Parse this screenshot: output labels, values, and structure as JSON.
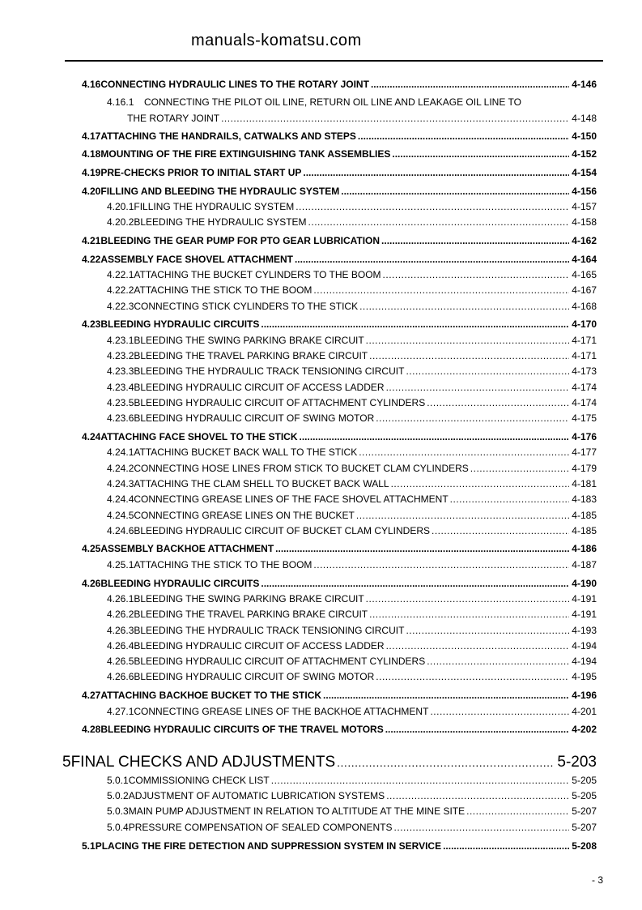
{
  "toc": [
    {
      "level": "main",
      "num": "4.16",
      "title": "CONNECTING HYDRAULIC LINES TO THE ROTARY JOINT",
      "page": "4-146"
    },
    {
      "level": "sub",
      "num": "4.16.1",
      "title": "CONNECTING THE PILOT OIL LINE, RETURN OIL LINE AND LEAKAGE OIL LINE TO",
      "page": ""
    },
    {
      "level": "sub",
      "num": "",
      "title": "THE ROTARY JOINT",
      "page": "4-148"
    },
    {
      "level": "main",
      "num": "4.17",
      "title": "ATTACHING THE HANDRAILS, CATWALKS AND STEPS",
      "page": "4-150"
    },
    {
      "level": "main",
      "num": "4.18",
      "title": "MOUNTING OF THE FIRE EXTINGUISHING TANK ASSEMBLIES",
      "page": "4-152"
    },
    {
      "level": "main",
      "num": "4.19",
      "title": "PRE-CHECKS PRIOR TO INITIAL START UP",
      "page": "4-154"
    },
    {
      "level": "main",
      "num": "4.20",
      "title": "FILLING AND BLEEDING THE HYDRAULIC SYSTEM",
      "page": "4-156"
    },
    {
      "level": "sub",
      "num": "4.20.1",
      "title": "FILLING THE HYDRAULIC SYSTEM",
      "page": "4-157"
    },
    {
      "level": "sub",
      "num": "4.20.2",
      "title": "BLEEDING THE HYDRAULIC SYSTEM",
      "page": "4-158"
    },
    {
      "level": "main",
      "num": "4.21",
      "title": "BLEEDING THE GEAR PUMP FOR PTO GEAR LUBRICATION",
      "page": "4-162"
    },
    {
      "level": "main",
      "num": "4.22",
      "title": "ASSEMBLY FACE SHOVEL ATTACHMENT",
      "page": "4-164"
    },
    {
      "level": "sub",
      "num": "4.22.1",
      "title": "ATTACHING THE BUCKET CYLINDERS TO THE BOOM",
      "page": "4-165"
    },
    {
      "level": "sub",
      "num": "4.22.2",
      "title": "ATTACHING THE STICK TO THE BOOM",
      "page": "4-167"
    },
    {
      "level": "sub",
      "num": "4.22.3",
      "title": "CONNECTING STICK CYLINDERS TO THE STICK",
      "page": "4-168"
    },
    {
      "level": "main",
      "num": "4.23",
      "title": "BLEEDING HYDRAULIC CIRCUITS",
      "page": "4-170"
    },
    {
      "level": "sub",
      "num": "4.23.1",
      "title": "BLEEDING THE SWING PARKING BRAKE CIRCUIT",
      "page": "4-171"
    },
    {
      "level": "sub",
      "num": "4.23.2",
      "title": "BLEEDING THE TRAVEL PARKING BRAKE CIRCUIT",
      "page": "4-171"
    },
    {
      "level": "sub",
      "num": "4.23.3",
      "title": "BLEEDING THE HYDRAULIC TRACK TENSIONING CIRCUIT",
      "page": "4-173"
    },
    {
      "level": "sub",
      "num": "4.23.4",
      "title": "BLEEDING HYDRAULIC CIRCUIT OF ACCESS LADDER",
      "page": "4-174"
    },
    {
      "level": "sub",
      "num": "4.23.5",
      "title": "BLEEDING HYDRAULIC CIRCUIT OF ATTACHMENT CYLINDERS",
      "page": "4-174"
    },
    {
      "level": "sub",
      "num": "4.23.6",
      "title": "BLEEDING HYDRAULIC CIRCUIT OF SWING MOTOR",
      "page": "4-175"
    },
    {
      "level": "main",
      "num": "4.24",
      "title": "ATTACHING FACE SHOVEL TO THE STICK",
      "page": "4-176"
    },
    {
      "level": "sub",
      "num": "4.24.1",
      "title": "ATTACHING BUCKET BACK WALL TO THE STICK",
      "page": "4-177"
    },
    {
      "level": "sub",
      "num": "4.24.2",
      "title": "CONNECTING HOSE LINES FROM STICK TO BUCKET CLAM CYLINDERS",
      "page": "4-179"
    },
    {
      "level": "sub",
      "num": "4.24.3",
      "title": "ATTACHING THE CLAM SHELL TO BUCKET BACK WALL",
      "page": "4-181"
    },
    {
      "level": "sub",
      "num": "4.24.4",
      "title": "CONNECTING GREASE LINES OF THE FACE SHOVEL ATTACHMENT",
      "page": "4-183"
    },
    {
      "level": "sub",
      "num": "4.24.5",
      "title": "CONNECTING GREASE LINES ON THE BUCKET",
      "page": "4-185"
    },
    {
      "level": "sub",
      "num": "4.24.6",
      "title": "BLEEDING HYDRAULIC CIRCUIT OF BUCKET CLAM CYLINDERS",
      "page": "4-185"
    },
    {
      "level": "main",
      "num": "4.25",
      "title": "ASSEMBLY BACKHOE ATTACHMENT",
      "page": "4-186"
    },
    {
      "level": "sub",
      "num": "4.25.1",
      "title": "ATTACHING THE STICK TO THE BOOM",
      "page": "4-187"
    },
    {
      "level": "main",
      "num": "4.26",
      "title": "BLEEDING HYDRAULIC CIRCUITS",
      "page": "4-190"
    },
    {
      "level": "sub",
      "num": "4.26.1",
      "title": "BLEEDING THE SWING PARKING BRAKE CIRCUIT",
      "page": "4-191"
    },
    {
      "level": "sub",
      "num": "4.26.2",
      "title": "BLEEDING THE TRAVEL PARKING BRAKE CIRCUIT",
      "page": "4-191"
    },
    {
      "level": "sub",
      "num": "4.26.3",
      "title": "BLEEDING THE HYDRAULIC TRACK TENSIONING CIRCUIT",
      "page": "4-193"
    },
    {
      "level": "sub",
      "num": "4.26.4",
      "title": "BLEEDING HYDRAULIC CIRCUIT OF ACCESS LADDER",
      "page": "4-194"
    },
    {
      "level": "sub",
      "num": "4.26.5",
      "title": "BLEEDING HYDRAULIC CIRCUIT OF ATTACHMENT CYLINDERS",
      "page": "4-194"
    },
    {
      "level": "sub",
      "num": "4.26.6",
      "title": "BLEEDING HYDRAULIC CIRCUIT OF SWING MOTOR",
      "page": "4-195"
    },
    {
      "level": "main",
      "num": "4.27",
      "title": "ATTACHING BACKHOE BUCKET TO THE STICK",
      "page": "4-196"
    },
    {
      "level": "sub",
      "num": "4.27.1",
      "title": "CONNECTING GREASE LINES OF THE BACKHOE ATTACHMENT",
      "page": "4-201"
    },
    {
      "level": "main",
      "num": "4.28",
      "title": "BLEEDING HYDRAULIC CIRCUITS OF THE TRAVEL MOTORS",
      "page": "4-202"
    },
    {
      "level": "chap",
      "num": "5",
      "title": "FINAL CHECKS AND ADJUSTMENTS",
      "page": "5-203"
    },
    {
      "level": "sub",
      "num": "5.0.1",
      "title": "COMMISSIONING CHECK LIST",
      "page": "5-205"
    },
    {
      "level": "sub",
      "num": "5.0.2",
      "title": "ADJUSTMENT OF AUTOMATIC LUBRICATION SYSTEMS",
      "page": "5-205"
    },
    {
      "level": "sub",
      "num": "5.0.3",
      "title": "MAIN PUMP ADJUSTMENT IN RELATION TO ALTITUDE AT THE MINE SITE",
      "page": "5-207"
    },
    {
      "level": "sub",
      "num": "5.0.4",
      "title": "PRESSURE COMPENSATION OF SEALED COMPONENTS",
      "page": "5-207"
    },
    {
      "level": "main",
      "num": "5.1",
      "title": "PLACING THE FIRE DETECTION AND SUPPRESSION SYSTEM IN SERVICE",
      "page": "5-208"
    }
  ],
  "watermark": "manuals-komatsu.com",
  "footer": {
    "page_number": "- 3"
  }
}
